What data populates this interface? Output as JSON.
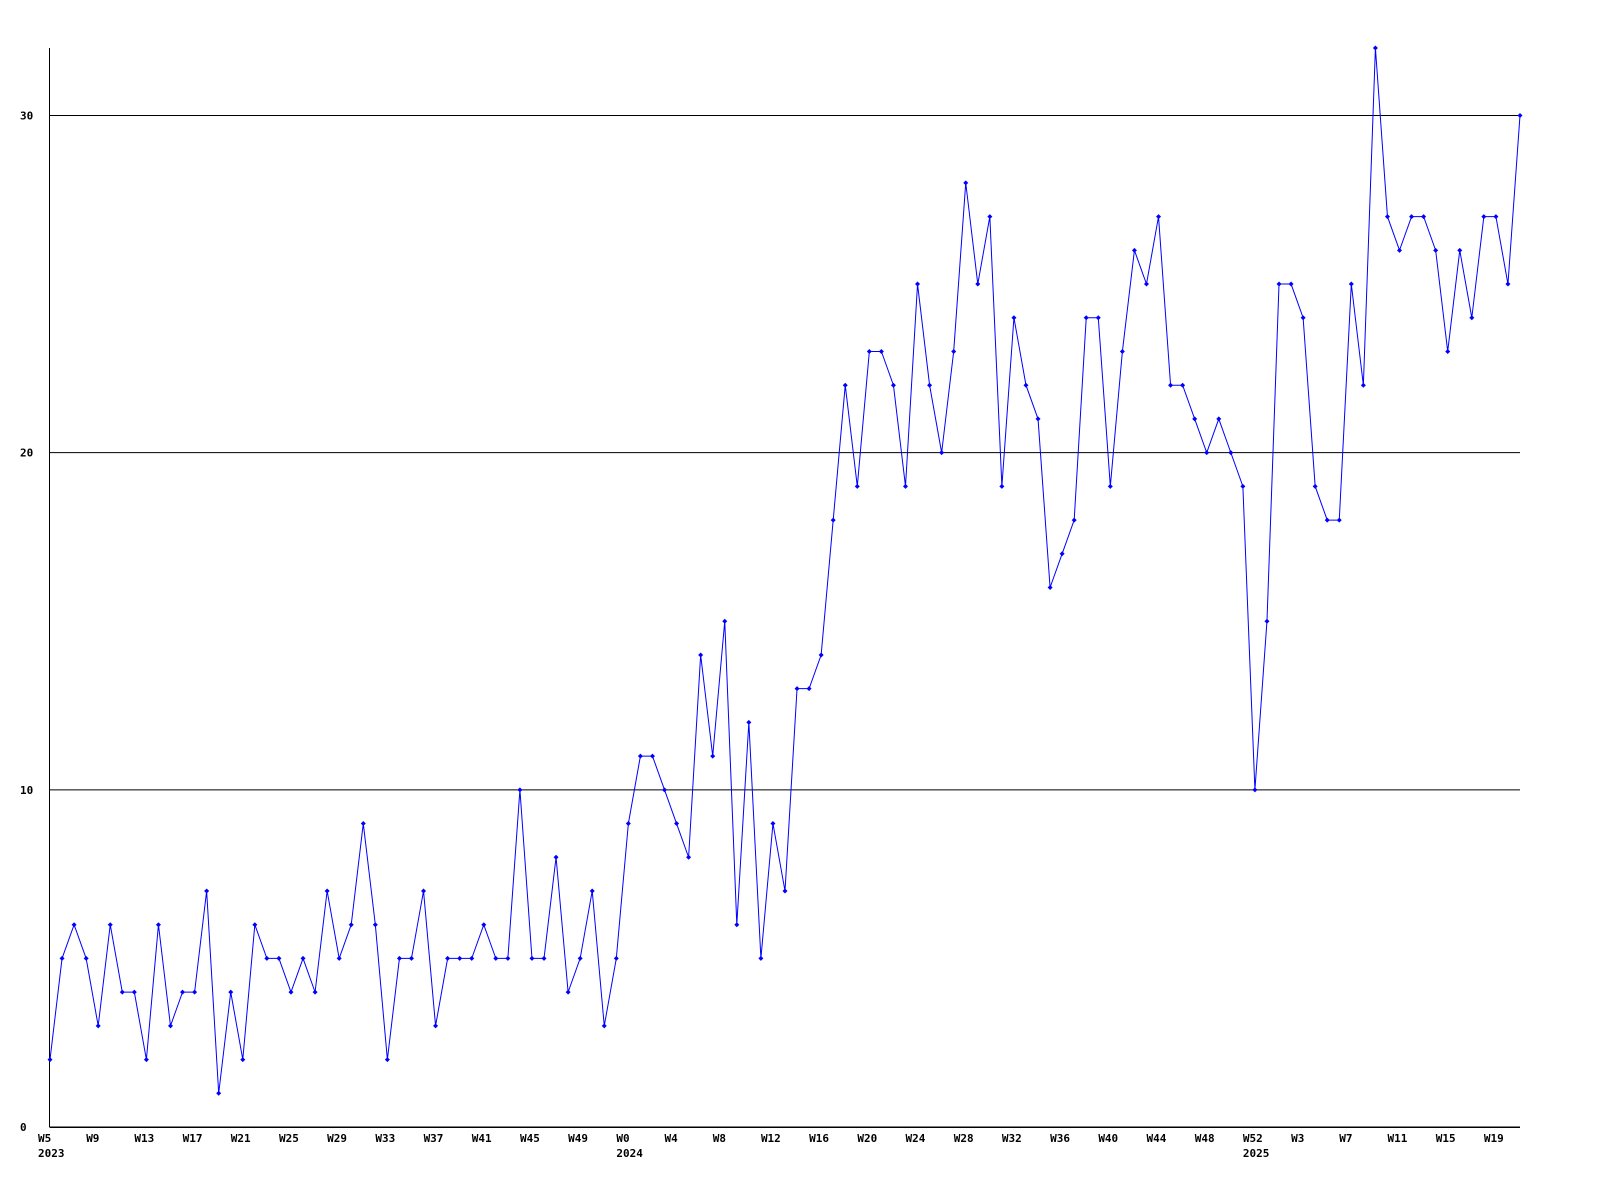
{
  "chart_data": {
    "type": "line",
    "categories": [
      "W5",
      null,
      null,
      null,
      "W9",
      null,
      null,
      null,
      "W13",
      null,
      null,
      null,
      "W17",
      null,
      null,
      null,
      "W21",
      null,
      null,
      null,
      "W25",
      null,
      null,
      null,
      "W29",
      null,
      null,
      null,
      "W33",
      null,
      null,
      null,
      "W37",
      null,
      null,
      null,
      "W41",
      null,
      null,
      null,
      "W45",
      null,
      null,
      null,
      "W49",
      null,
      null,
      null,
      "W0",
      null,
      null,
      null,
      "W4",
      null,
      null,
      null,
      "W8",
      null,
      null,
      null,
      "W12",
      null,
      null,
      null,
      "W16",
      null,
      null,
      null,
      "W20",
      null,
      null,
      null,
      "W24",
      null,
      null,
      null,
      "W28",
      null,
      null,
      null,
      "W32",
      null,
      null,
      null,
      "W36",
      null,
      null,
      null,
      "W40",
      null,
      null,
      null,
      "W44",
      null,
      null,
      null,
      "W48",
      null,
      null,
      null,
      "W52",
      null,
      null,
      null,
      "W3",
      null,
      null,
      null,
      "W7",
      null,
      null,
      null,
      "W11",
      null,
      null,
      null,
      "W15",
      null,
      null,
      null,
      "W19",
      null,
      null
    ],
    "category_years": [
      "2023",
      null,
      null,
      null,
      null,
      null,
      null,
      null,
      null,
      null,
      null,
      null,
      null,
      null,
      null,
      null,
      null,
      null,
      null,
      null,
      null,
      null,
      null,
      null,
      null,
      null,
      null,
      null,
      null,
      null,
      null,
      null,
      null,
      null,
      null,
      null,
      null,
      null,
      null,
      null,
      null,
      null,
      null,
      null,
      null,
      null,
      null,
      null,
      "2024",
      null,
      null,
      null,
      null,
      null,
      null,
      null,
      null,
      null,
      null,
      null,
      null,
      null,
      null,
      null,
      null,
      null,
      null,
      null,
      null,
      null,
      null,
      null,
      null,
      null,
      null,
      null,
      null,
      null,
      null,
      null,
      null,
      null,
      null,
      null,
      null,
      null,
      null,
      null,
      null,
      null,
      null,
      null,
      null,
      null,
      null,
      null,
      null,
      null,
      null,
      null,
      "2025",
      null,
      null,
      null,
      null,
      null,
      null,
      null,
      null,
      null,
      null,
      null,
      null,
      null,
      null,
      null,
      null,
      null,
      null,
      null,
      null,
      null,
      null
    ],
    "values": [
      2,
      5,
      6,
      5,
      3,
      6,
      4,
      4,
      2,
      6,
      3,
      4,
      4,
      7,
      1,
      4,
      2,
      6,
      5,
      5,
      4,
      5,
      4,
      7,
      5,
      6,
      9,
      6,
      2,
      5,
      5,
      7,
      3,
      5,
      5,
      5,
      6,
      5,
      5,
      10,
      5,
      5,
      8,
      4,
      5,
      7,
      3,
      5,
      9,
      11,
      11,
      10,
      9,
      8,
      14,
      11,
      15,
      6,
      12,
      5,
      9,
      7,
      13,
      13,
      14,
      18,
      22,
      19,
      23,
      23,
      22,
      19,
      25,
      22,
      20,
      23,
      28,
      25,
      27,
      19,
      24,
      22,
      21,
      16,
      17,
      18,
      24,
      24,
      19,
      23,
      26,
      25,
      27,
      22,
      22,
      21,
      20,
      21,
      20,
      19,
      10,
      15,
      25,
      25,
      24,
      19,
      18,
      18,
      25,
      22,
      32,
      27,
      26,
      27,
      27,
      26,
      23,
      26,
      24,
      27,
      27,
      25,
      30
    ],
    "color": "#0000ff",
    "ylim": [
      0,
      32
    ],
    "yticks": [
      0,
      10,
      20,
      30
    ],
    "grid": true
  }
}
